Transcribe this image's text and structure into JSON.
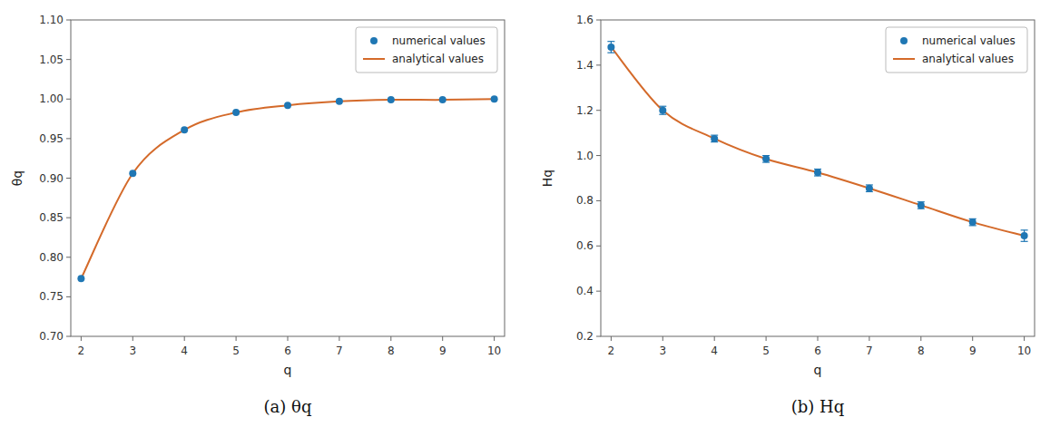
{
  "chart_data": [
    {
      "type": "line",
      "title": "(a)  θq",
      "x_label": "q",
      "y_label": "θq",
      "x": [
        2,
        3,
        4,
        5,
        6,
        7,
        8,
        9,
        10
      ],
      "xlim": [
        1.8,
        10.2
      ],
      "xticks": [
        2,
        3,
        4,
        5,
        6,
        7,
        8,
        9,
        10
      ],
      "ylim": [
        0.7,
        1.1
      ],
      "yticks": [
        {
          "value": 0.7,
          "label": "0.70"
        },
        0.75,
        {
          "value": 0.8,
          "label": "0.80"
        },
        0.85,
        {
          "value": 0.9,
          "label": "0.90"
        },
        0.95,
        {
          "value": 1.0,
          "label": "1.00"
        },
        1.05,
        {
          "value": 1.1,
          "label": "1.10"
        }
      ],
      "grid": false,
      "legend": "upper right",
      "series": [
        {
          "name": "numerical values",
          "type": "scatter",
          "marker": "circle",
          "color": "#1f77b4",
          "values": [
            0.773,
            0.906,
            0.961,
            0.983,
            0.992,
            0.997,
            0.999,
            0.999,
            1.0
          ]
        },
        {
          "name": "analytical values",
          "type": "line",
          "color": "#d46a2a",
          "values": [
            0.773,
            0.906,
            0.961,
            0.983,
            0.992,
            0.997,
            0.999,
            0.999,
            1.0
          ]
        }
      ]
    },
    {
      "type": "line",
      "title": "(b)  Hq",
      "x_label": "q",
      "y_label": "Hq",
      "x": [
        2,
        3,
        4,
        5,
        6,
        7,
        8,
        9,
        10
      ],
      "xlim": [
        1.8,
        10.2
      ],
      "xticks": [
        2,
        3,
        4,
        5,
        6,
        7,
        8,
        9,
        10
      ],
      "ylim": [
        0.2,
        1.6
      ],
      "yticks": [
        0.2,
        0.4,
        0.6,
        0.8,
        {
          "value": 1.0,
          "label": "1.0"
        },
        1.2,
        1.4,
        1.6
      ],
      "grid": false,
      "legend": "upper right",
      "series": [
        {
          "name": "numerical values",
          "type": "scatter",
          "marker": "circle",
          "color": "#1f77b4",
          "values": [
            1.48,
            1.2,
            1.075,
            0.985,
            0.925,
            0.855,
            0.78,
            0.705,
            0.645
          ],
          "errors": [
            0.025,
            0.018,
            0.015,
            0.015,
            0.015,
            0.015,
            0.015,
            0.015,
            0.025
          ]
        },
        {
          "name": "analytical values",
          "type": "line",
          "color": "#d46a2a",
          "values": [
            1.48,
            1.2,
            1.075,
            0.985,
            0.925,
            0.855,
            0.78,
            0.705,
            0.645
          ]
        }
      ]
    }
  ]
}
